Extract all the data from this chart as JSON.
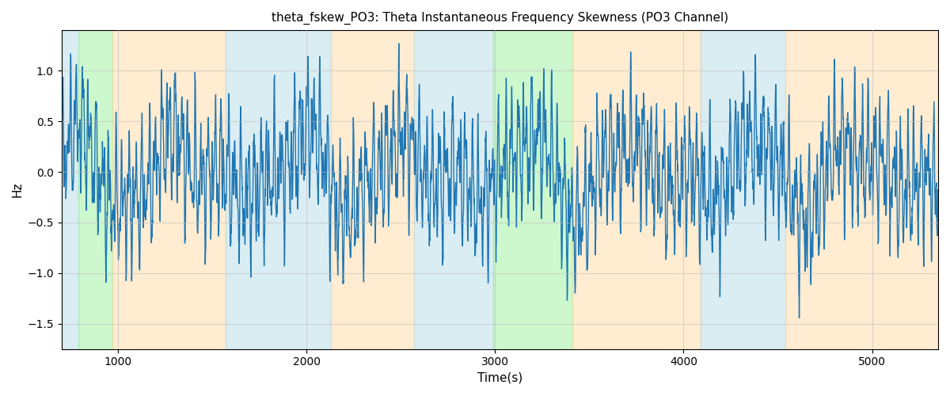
{
  "title": "theta_fskew_PO3: Theta Instantaneous Frequency Skewness (PO3 Channel)",
  "xlabel": "Time(s)",
  "ylabel": "Hz",
  "xlim": [
    700,
    5350
  ],
  "ylim": [
    -1.75,
    1.4
  ],
  "yticks": [
    -1.5,
    -1.0,
    -0.5,
    0.0,
    0.5,
    1.0
  ],
  "xticks": [
    1000,
    2000,
    3000,
    4000,
    5000
  ],
  "line_color": "#1f77b4",
  "line_width": 1.0,
  "background_bands": [
    {
      "xmin": 700,
      "xmax": 790,
      "color": "#add8e6",
      "alpha": 0.45
    },
    {
      "xmin": 790,
      "xmax": 970,
      "color": "#90ee90",
      "alpha": 0.45
    },
    {
      "xmin": 970,
      "xmax": 1010,
      "color": "#ffd59a",
      "alpha": 0.45
    },
    {
      "xmin": 1010,
      "xmax": 1570,
      "color": "#ffd59a",
      "alpha": 0.45
    },
    {
      "xmin": 1570,
      "xmax": 1640,
      "color": "#add8e6",
      "alpha": 0.45
    },
    {
      "xmin": 1640,
      "xmax": 2130,
      "color": "#add8e6",
      "alpha": 0.45
    },
    {
      "xmin": 2130,
      "xmax": 2160,
      "color": "#ffd59a",
      "alpha": 0.45
    },
    {
      "xmin": 2160,
      "xmax": 2570,
      "color": "#ffd59a",
      "alpha": 0.45
    },
    {
      "xmin": 2570,
      "xmax": 2610,
      "color": "#add8e6",
      "alpha": 0.45
    },
    {
      "xmin": 2610,
      "xmax": 2990,
      "color": "#add8e6",
      "alpha": 0.45
    },
    {
      "xmin": 2990,
      "xmax": 3060,
      "color": "#90ee90",
      "alpha": 0.45
    },
    {
      "xmin": 3060,
      "xmax": 3410,
      "color": "#90ee90",
      "alpha": 0.45
    },
    {
      "xmin": 3410,
      "xmax": 3460,
      "color": "#ffd59a",
      "alpha": 0.45
    },
    {
      "xmin": 3460,
      "xmax": 3620,
      "color": "#ffd59a",
      "alpha": 0.45
    },
    {
      "xmin": 3620,
      "xmax": 4090,
      "color": "#ffd59a",
      "alpha": 0.45
    },
    {
      "xmin": 4090,
      "xmax": 4150,
      "color": "#add8e6",
      "alpha": 0.45
    },
    {
      "xmin": 4150,
      "xmax": 4540,
      "color": "#add8e6",
      "alpha": 0.45
    },
    {
      "xmin": 4540,
      "xmax": 4620,
      "color": "#ffd59a",
      "alpha": 0.45
    },
    {
      "xmin": 4620,
      "xmax": 5000,
      "color": "#ffd59a",
      "alpha": 0.45
    },
    {
      "xmin": 5000,
      "xmax": 5350,
      "color": "#ffd59a",
      "alpha": 0.45
    }
  ],
  "grid_color": "#bbbbbb",
  "grid_alpha": 0.7,
  "figsize": [
    12,
    5
  ],
  "dpi": 100
}
